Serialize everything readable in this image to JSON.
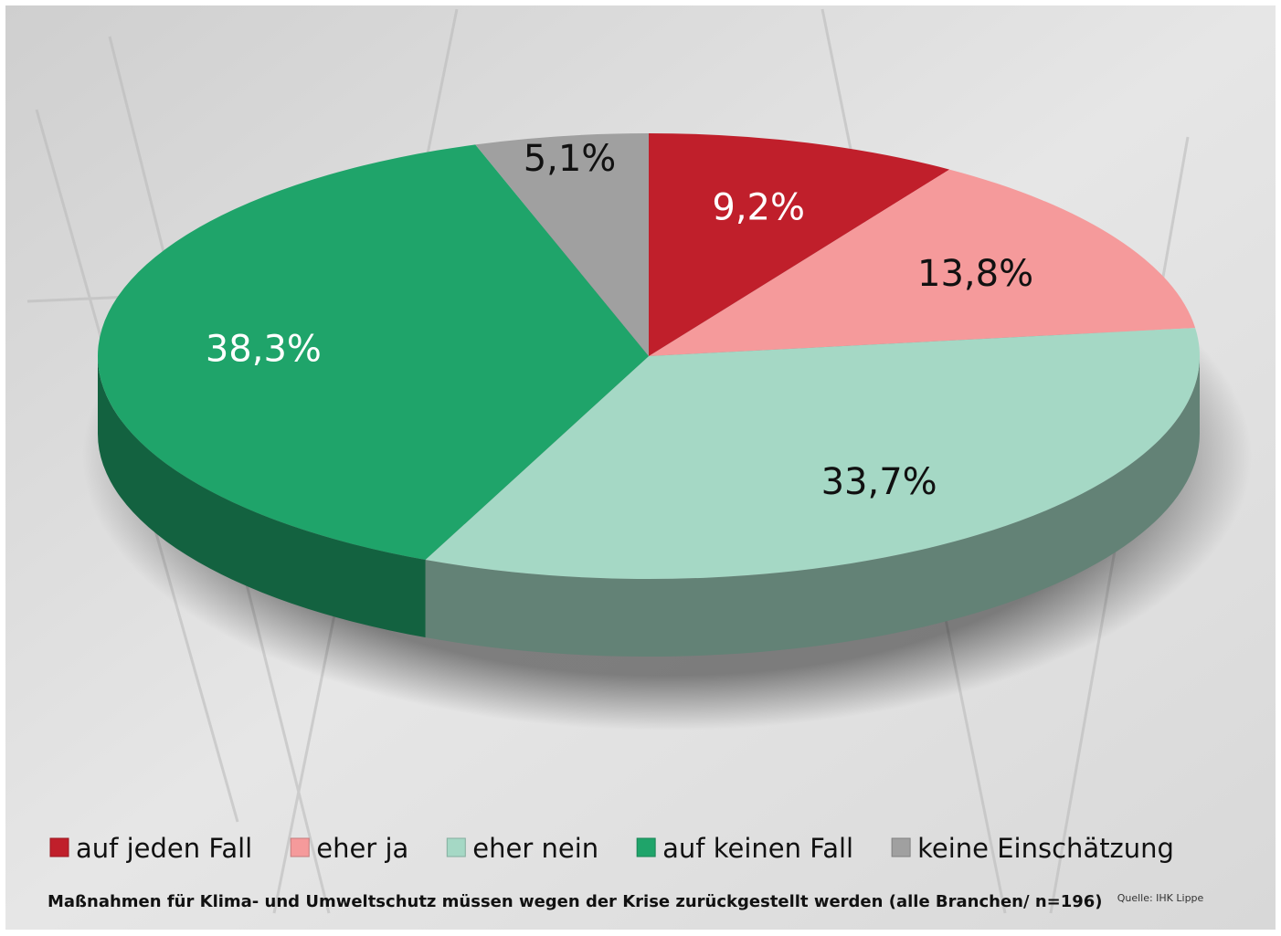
{
  "chart_data": {
    "type": "pie3d",
    "categories": [
      "auf jeden Fall",
      "eher ja",
      "eher nein",
      "auf keinen Fall",
      "keine Einschätzung"
    ],
    "values": [
      9.2,
      13.8,
      33.7,
      38.3,
      5.1
    ],
    "value_labels": [
      "9,2%",
      "13,8%",
      "33,7%",
      "38,3%",
      "5,1%"
    ],
    "colors": [
      "#c01f2b",
      "#f59a9b",
      "#a5d8c5",
      "#1fa46a",
      "#a0a0a0"
    ],
    "caption": "Maßnahmen für Klima- und Umweltschutz müssen wegen der Krise zurückgestellt werden  (alle Branchen/ n=196)",
    "source": "Quelle: IHK Lippe",
    "legend": "bottom"
  }
}
